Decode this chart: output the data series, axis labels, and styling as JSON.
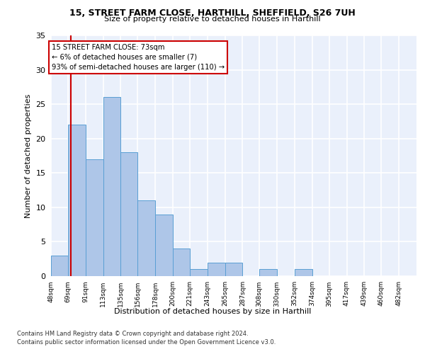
{
  "title1": "15, STREET FARM CLOSE, HARTHILL, SHEFFIELD, S26 7UH",
  "title2": "Size of property relative to detached houses in Harthill",
  "xlabel": "Distribution of detached houses by size in Harthill",
  "ylabel": "Number of detached properties",
  "bin_labels": [
    "48sqm",
    "69sqm",
    "91sqm",
    "113sqm",
    "135sqm",
    "156sqm",
    "178sqm",
    "200sqm",
    "221sqm",
    "243sqm",
    "265sqm",
    "287sqm",
    "308sqm",
    "330sqm",
    "352sqm",
    "374sqm",
    "395sqm",
    "417sqm",
    "439sqm",
    "460sqm",
    "482sqm"
  ],
  "bin_edges": [
    48,
    69,
    91,
    113,
    135,
    156,
    178,
    200,
    221,
    243,
    265,
    287,
    308,
    330,
    352,
    374,
    395,
    417,
    439,
    460,
    482,
    504
  ],
  "bar_values": [
    3,
    22,
    17,
    26,
    18,
    11,
    9,
    4,
    1,
    2,
    2,
    0,
    1,
    0,
    1,
    0,
    0,
    0,
    0,
    0,
    0
  ],
  "bar_color": "#aec6e8",
  "bar_edge_color": "#5a9fd4",
  "property_size": 73,
  "red_line_color": "#cc0000",
  "annotation_text": "15 STREET FARM CLOSE: 73sqm\n← 6% of detached houses are smaller (7)\n93% of semi-detached houses are larger (110) →",
  "annotation_box_color": "#ffffff",
  "annotation_box_edge": "#cc0000",
  "footnote1": "Contains HM Land Registry data © Crown copyright and database right 2024.",
  "footnote2": "Contains public sector information licensed under the Open Government Licence v3.0.",
  "ylim": [
    0,
    35
  ],
  "yticks": [
    0,
    5,
    10,
    15,
    20,
    25,
    30,
    35
  ],
  "bg_color": "#eaf0fb",
  "fig_bg": "#ffffff"
}
